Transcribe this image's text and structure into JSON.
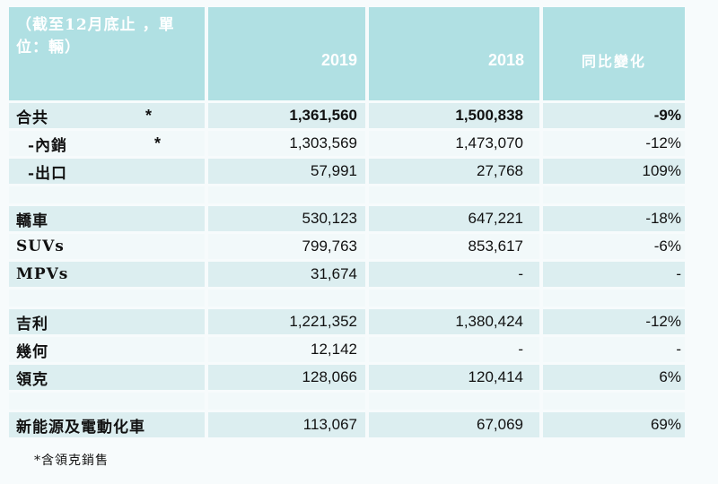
{
  "colors": {
    "page_background": "#f7fbfc",
    "header_background": "#b0e0e3",
    "row_teal": "#dceef0",
    "row_light": "#f2f9fa",
    "header_text": "#ffffff",
    "body_text": "#111111"
  },
  "table": {
    "header": {
      "period": "（截至12月底止 ，單位：輛）",
      "col_2019": "2019",
      "col_2018": "2018",
      "col_yoy": "同比變化"
    },
    "rows": [
      {
        "type": "data",
        "label": "合共",
        "asterisk": "*",
        "indent": false,
        "emphasis": true,
        "v2019": "1,361,560",
        "v2018": "1,500,838",
        "yoy": "-9%"
      },
      {
        "type": "data",
        "label": "-內銷",
        "asterisk": "*",
        "indent": true,
        "emphasis": false,
        "v2019": "1,303,569",
        "v2018": "1,473,070",
        "yoy": "-12%"
      },
      {
        "type": "data",
        "label": "-出口",
        "asterisk": "",
        "indent": true,
        "emphasis": false,
        "v2019": "57,991",
        "v2018": "27,768",
        "yoy": "109%"
      },
      {
        "type": "spacer"
      },
      {
        "type": "data",
        "label": "轎車",
        "asterisk": "",
        "indent": false,
        "emphasis": false,
        "v2019": "530,123",
        "v2018": "647,221",
        "yoy": "-18%"
      },
      {
        "type": "data",
        "label": "SUVs",
        "asterisk": "",
        "indent": false,
        "emphasis": false,
        "v2019": "799,763",
        "v2018": "853,617",
        "yoy": "-6%"
      },
      {
        "type": "data",
        "label": "MPVs",
        "asterisk": "",
        "indent": false,
        "emphasis": false,
        "v2019": "31,674",
        "v2018": "-",
        "yoy": "-"
      },
      {
        "type": "spacer"
      },
      {
        "type": "data",
        "label": "吉利",
        "asterisk": "",
        "indent": false,
        "emphasis": false,
        "v2019": "1,221,352",
        "v2018": "1,380,424",
        "yoy": "-12%"
      },
      {
        "type": "data",
        "label": "幾何",
        "asterisk": "",
        "indent": false,
        "emphasis": false,
        "v2019": "12,142",
        "v2018": "-",
        "yoy": "-"
      },
      {
        "type": "data",
        "label": "領克",
        "asterisk": "",
        "indent": false,
        "emphasis": false,
        "v2019": "128,066",
        "v2018": "120,414",
        "yoy": "6%"
      },
      {
        "type": "spacer"
      },
      {
        "type": "data",
        "label": "新能源及電動化車",
        "asterisk": "",
        "indent": false,
        "emphasis": false,
        "v2019": "113,067",
        "v2018": "67,069",
        "yoy": "69%"
      }
    ]
  },
  "footnote": "*含領克銷售"
}
